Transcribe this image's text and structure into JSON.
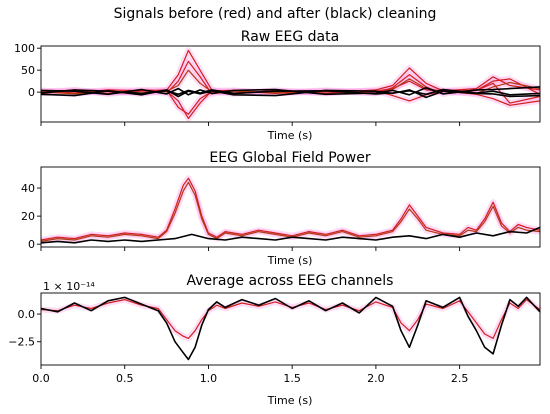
{
  "figure": {
    "title": "Signals before (red) and after (black) cleaning"
  },
  "colors": {
    "before": "#d11f1f",
    "before_alt": "#b03a12",
    "after": "#000000",
    "band": "#ff9ae6"
  },
  "chart_data": [
    {
      "type": "line",
      "title": "Raw EEG data",
      "xlabel": "Time (s)",
      "xlim": [
        0,
        2.98
      ],
      "ylim": [
        -68,
        105
      ],
      "yticks": [
        0,
        50,
        100
      ],
      "yticklabels": [
        "0",
        "50",
        "100"
      ],
      "xticks": [
        0,
        0.5,
        1.0,
        1.5,
        2.0,
        2.5
      ],
      "xticklabels": [],
      "series": [
        {
          "role": "before",
          "x": [
            0,
            0.2,
            0.4,
            0.6,
            0.75,
            0.82,
            0.88,
            0.95,
            1.02,
            1.15,
            1.4,
            1.7,
            2.0,
            2.1,
            2.2,
            2.3,
            2.4,
            2.6,
            2.7,
            2.8,
            2.98
          ],
          "y": [
            2,
            4,
            -3,
            5,
            3,
            -20,
            -60,
            -25,
            3,
            4,
            -2,
            3,
            2,
            8,
            25,
            5,
            2,
            4,
            20,
            -25,
            -10
          ]
        },
        {
          "role": "before",
          "x": [
            0,
            0.2,
            0.4,
            0.6,
            0.75,
            0.82,
            0.88,
            0.95,
            1.02,
            1.15,
            1.4,
            1.7,
            2.0,
            2.1,
            2.2,
            2.3,
            2.4,
            2.6,
            2.7,
            2.8,
            2.98
          ],
          "y": [
            -3,
            3,
            2,
            -4,
            4,
            40,
            95,
            50,
            5,
            -2,
            3,
            -3,
            5,
            15,
            55,
            20,
            3,
            8,
            35,
            15,
            5
          ]
        },
        {
          "role": "before",
          "x": [
            0,
            0.2,
            0.4,
            0.6,
            0.75,
            0.82,
            0.88,
            0.95,
            1.02,
            1.15,
            1.4,
            1.7,
            2.0,
            2.1,
            2.2,
            2.3,
            2.4,
            2.6,
            2.7,
            2.8,
            2.98
          ],
          "y": [
            4,
            -2,
            5,
            3,
            -3,
            25,
            70,
            35,
            -4,
            3,
            -3,
            2,
            -2,
            10,
            40,
            12,
            -4,
            4,
            25,
            30,
            -5
          ]
        },
        {
          "role": "before",
          "x": [
            0,
            0.2,
            0.4,
            0.6,
            0.75,
            0.82,
            0.88,
            0.95,
            1.02,
            1.15,
            1.4,
            1.7,
            2.0,
            2.1,
            2.2,
            2.3,
            2.4,
            2.6,
            2.7,
            2.8,
            2.98
          ],
          "y": [
            -2,
            5,
            -4,
            2,
            5,
            -35,
            -50,
            -15,
            2,
            -4,
            4,
            -2,
            3,
            -8,
            -20,
            -6,
            3,
            -5,
            -15,
            -30,
            -20
          ]
        },
        {
          "role": "before_alt",
          "x": [
            0,
            0.2,
            0.4,
            0.6,
            0.75,
            0.82,
            0.88,
            0.95,
            1.02,
            1.15,
            1.4,
            1.7,
            2.0,
            2.1,
            2.2,
            2.3,
            2.4,
            2.6,
            2.7,
            2.8,
            2.98
          ],
          "y": [
            1,
            -4,
            3,
            -2,
            2,
            15,
            50,
            20,
            1,
            2,
            -1,
            4,
            -3,
            6,
            30,
            8,
            2,
            -3,
            12,
            22,
            8
          ]
        },
        {
          "role": "after",
          "x": [
            0,
            0.2,
            0.4,
            0.6,
            0.75,
            0.82,
            0.88,
            0.95,
            1.02,
            1.15,
            1.4,
            1.7,
            2.0,
            2.1,
            2.2,
            2.3,
            2.4,
            2.6,
            2.7,
            2.8,
            2.98
          ],
          "y": [
            -5,
            -8,
            3,
            -6,
            5,
            -10,
            2,
            -4,
            3,
            -6,
            -8,
            4,
            2,
            -3,
            5,
            -12,
            2,
            -3,
            -4,
            -10,
            -8
          ]
        },
        {
          "role": "after",
          "x": [
            0,
            0.2,
            0.4,
            0.6,
            0.75,
            0.82,
            0.88,
            0.95,
            1.02,
            1.15,
            1.4,
            1.7,
            2.0,
            2.1,
            2.2,
            2.3,
            2.4,
            2.6,
            2.7,
            2.8,
            2.98
          ],
          "y": [
            4,
            2,
            -5,
            6,
            -4,
            8,
            -6,
            5,
            -3,
            4,
            6,
            -5,
            -2,
            4,
            -6,
            10,
            -4,
            5,
            6,
            8,
            12
          ]
        },
        {
          "role": "after",
          "x": [
            0,
            0.2,
            0.4,
            0.6,
            0.75,
            0.82,
            0.88,
            0.95,
            1.02,
            1.15,
            1.4,
            1.7,
            2.0,
            2.1,
            2.2,
            2.3,
            2.4,
            2.6,
            2.7,
            2.8,
            2.98
          ],
          "y": [
            -2,
            5,
            2,
            -3,
            3,
            -5,
            4,
            -2,
            5,
            -3,
            2,
            3,
            -4,
            -2,
            3,
            -5,
            6,
            -2,
            2,
            -6,
            -3
          ]
        }
      ]
    },
    {
      "type": "line",
      "title": "EEG Global Field Power",
      "xlabel": "Time (s)",
      "xlim": [
        0,
        2.98
      ],
      "ylim": [
        -2,
        55
      ],
      "yticks": [
        0,
        20,
        40
      ],
      "yticklabels": [
        "0",
        "20",
        "40"
      ],
      "xticks": [
        0,
        0.5,
        1.0,
        1.5,
        2.0,
        2.5
      ],
      "xticklabels": [],
      "series": [
        {
          "role": "before",
          "x": [
            0,
            0.1,
            0.2,
            0.3,
            0.4,
            0.5,
            0.6,
            0.7,
            0.75,
            0.8,
            0.85,
            0.88,
            0.92,
            0.96,
            1.0,
            1.05,
            1.1,
            1.2,
            1.3,
            1.4,
            1.5,
            1.6,
            1.7,
            1.8,
            1.9,
            2.0,
            2.1,
            2.15,
            2.2,
            2.25,
            2.3,
            2.4,
            2.5,
            2.55,
            2.6,
            2.65,
            2.7,
            2.75,
            2.8,
            2.85,
            2.9,
            2.98
          ],
          "y": [
            3,
            5,
            4,
            7,
            6,
            8,
            7,
            5,
            10,
            25,
            42,
            47,
            38,
            20,
            8,
            5,
            9,
            7,
            10,
            8,
            6,
            9,
            7,
            10,
            6,
            7,
            10,
            18,
            28,
            20,
            12,
            8,
            7,
            12,
            10,
            18,
            30,
            15,
            9,
            14,
            12,
            10
          ]
        },
        {
          "role": "before_alt",
          "x": [
            0,
            0.1,
            0.2,
            0.3,
            0.4,
            0.5,
            0.6,
            0.7,
            0.75,
            0.8,
            0.85,
            0.88,
            0.92,
            0.96,
            1.0,
            1.05,
            1.1,
            1.2,
            1.3,
            1.4,
            1.5,
            1.6,
            1.7,
            1.8,
            1.9,
            2.0,
            2.1,
            2.15,
            2.2,
            2.25,
            2.3,
            2.4,
            2.5,
            2.55,
            2.6,
            2.65,
            2.7,
            2.75,
            2.8,
            2.85,
            2.9,
            2.98
          ],
          "y": [
            2,
            4,
            3,
            6,
            5,
            7,
            6,
            4,
            9,
            22,
            38,
            44,
            35,
            18,
            7,
            4,
            8,
            6,
            9,
            7,
            5,
            8,
            6,
            9,
            5,
            6,
            9,
            16,
            25,
            18,
            10,
            7,
            6,
            10,
            9,
            16,
            27,
            13,
            8,
            12,
            10,
            9
          ]
        },
        {
          "role": "after",
          "x": [
            0,
            0.1,
            0.2,
            0.3,
            0.4,
            0.5,
            0.6,
            0.7,
            0.8,
            0.9,
            1.0,
            1.1,
            1.2,
            1.3,
            1.4,
            1.5,
            1.6,
            1.7,
            1.8,
            1.9,
            2.0,
            2.1,
            2.2,
            2.3,
            2.4,
            2.5,
            2.6,
            2.7,
            2.8,
            2.9,
            2.98
          ],
          "y": [
            1,
            2,
            1,
            3,
            2,
            3,
            2,
            3,
            4,
            7,
            4,
            3,
            5,
            4,
            3,
            5,
            4,
            3,
            5,
            4,
            3,
            5,
            6,
            4,
            7,
            5,
            8,
            6,
            9,
            8,
            12
          ]
        }
      ]
    },
    {
      "type": "line",
      "title": "Average across EEG channels",
      "xlabel": "Time (s)",
      "scale_label": "1 × 10⁻¹⁴",
      "xlim": [
        0,
        2.98
      ],
      "ylim": [
        -4.6,
        1.9
      ],
      "yticks": [
        0.0,
        -2.5
      ],
      "yticklabels": [
        "0.0",
        "−2.5"
      ],
      "xticks": [
        0,
        0.5,
        1.0,
        1.5,
        2.0,
        2.5
      ],
      "xticklabels": [
        "0.0",
        "0.5",
        "1.0",
        "1.5",
        "2.0",
        "2.5"
      ],
      "series": [
        {
          "role": "before",
          "x": [
            0,
            0.1,
            0.2,
            0.3,
            0.4,
            0.5,
            0.6,
            0.7,
            0.75,
            0.8,
            0.85,
            0.88,
            0.92,
            0.96,
            1.0,
            1.05,
            1.1,
            1.2,
            1.3,
            1.4,
            1.5,
            1.6,
            1.7,
            1.8,
            1.9,
            2.0,
            2.1,
            2.15,
            2.2,
            2.25,
            2.3,
            2.4,
            2.5,
            2.55,
            2.6,
            2.65,
            2.7,
            2.75,
            2.8,
            2.85,
            2.9,
            2.98
          ],
          "y": [
            0.4,
            0.3,
            0.8,
            0.5,
            1.0,
            1.3,
            0.8,
            0.5,
            -0.5,
            -1.5,
            -2.0,
            -2.2,
            -1.5,
            -0.5,
            0.3,
            0.8,
            0.5,
            1.0,
            0.7,
            1.1,
            0.6,
            1.0,
            0.4,
            0.8,
            0.3,
            1.1,
            0.6,
            -0.8,
            -1.5,
            -0.5,
            0.9,
            0.5,
            1.2,
            0.2,
            -0.8,
            -1.8,
            -2.2,
            -0.5,
            1.0,
            0.5,
            1.3,
            0.4
          ]
        },
        {
          "role": "after",
          "x": [
            0,
            0.1,
            0.2,
            0.3,
            0.4,
            0.5,
            0.6,
            0.7,
            0.75,
            0.8,
            0.85,
            0.88,
            0.92,
            0.96,
            1.0,
            1.05,
            1.1,
            1.2,
            1.3,
            1.4,
            1.5,
            1.6,
            1.7,
            1.8,
            1.9,
            2.0,
            2.1,
            2.15,
            2.2,
            2.25,
            2.3,
            2.4,
            2.5,
            2.55,
            2.6,
            2.65,
            2.7,
            2.75,
            2.8,
            2.85,
            2.9,
            2.98
          ],
          "y": [
            0.5,
            0.2,
            1.0,
            0.3,
            1.2,
            1.5,
            0.9,
            0.3,
            -0.8,
            -2.5,
            -3.5,
            -4.1,
            -3.0,
            -1.0,
            0.4,
            1.1,
            0.6,
            1.3,
            0.8,
            1.4,
            0.5,
            1.2,
            0.3,
            1.0,
            0.1,
            1.5,
            0.7,
            -1.5,
            -3.0,
            -1.0,
            1.2,
            0.6,
            1.5,
            -0.2,
            -1.5,
            -3.0,
            -3.6,
            -1.0,
            1.3,
            0.7,
            1.5,
            0.2
          ]
        }
      ]
    }
  ]
}
